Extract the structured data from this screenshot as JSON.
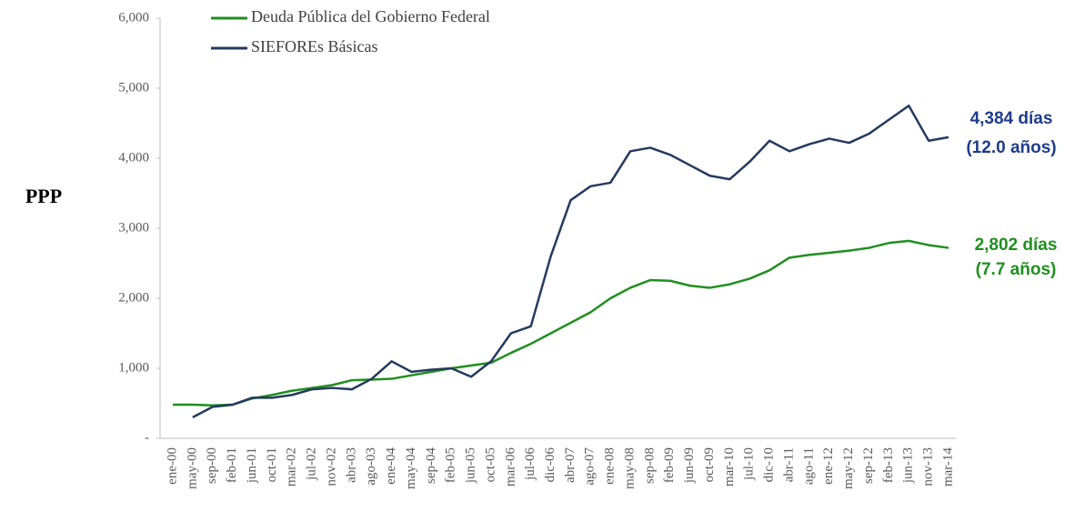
{
  "chart_data": {
    "type": "line",
    "ylabel": "PPP",
    "categories": [
      "ene-00",
      "may-00",
      "sep-00",
      "feb-01",
      "jun-01",
      "oct-01",
      "mar-02",
      "jul-02",
      "nov-02",
      "abr-03",
      "ago-03",
      "ene-04",
      "may-04",
      "sep-04",
      "feb-05",
      "jun-05",
      "oct-05",
      "mar-06",
      "jul-06",
      "dic-06",
      "abr-07",
      "ago-07",
      "ene-08",
      "may-08",
      "sep-08",
      "feb-09",
      "jun-09",
      "oct-09",
      "mar-10",
      "jul-10",
      "dic-10",
      "abr-11",
      "ago-11",
      "ene-12",
      "may-12",
      "sep-12",
      "feb-13",
      "jun-13",
      "nov-13",
      "mar-14"
    ],
    "series": [
      {
        "name": "Deuda Pública del Gobierno Federal",
        "color": "#1f8f1f",
        "values": [
          480,
          480,
          470,
          480,
          570,
          620,
          680,
          720,
          760,
          830,
          840,
          850,
          900,
          950,
          1000,
          1040,
          1080,
          1220,
          1350,
          1500,
          1650,
          1800,
          2000,
          2150,
          2260,
          2250,
          2180,
          2150,
          2200,
          2280,
          2400,
          2580,
          2620,
          2650,
          2680,
          2720,
          2790,
          2820,
          2760,
          2720
        ]
      },
      {
        "name": "SIEFOREs Básicas",
        "color": "#253a5e",
        "values": [
          null,
          300,
          450,
          480,
          580,
          580,
          620,
          700,
          720,
          700,
          850,
          1100,
          950,
          980,
          1000,
          880,
          1100,
          1500,
          1600,
          2600,
          3400,
          3600,
          3650,
          4100,
          4150,
          4050,
          3900,
          3750,
          3700,
          3950,
          4250,
          4100,
          4200,
          4280,
          4220,
          4350,
          4550,
          4750,
          4250,
          4300
        ]
      }
    ],
    "ylim": [
      0,
      6000
    ],
    "yticks": [
      {
        "value": 0,
        "label": "-"
      },
      {
        "value": 1000,
        "label": "1,000"
      },
      {
        "value": 2000,
        "label": "2,000"
      },
      {
        "value": 3000,
        "label": "3,000"
      },
      {
        "value": 4000,
        "label": "4,000"
      },
      {
        "value": 5000,
        "label": "5,000"
      },
      {
        "value": 6000,
        "label": "6,000"
      }
    ],
    "legend": "upper left",
    "annotations": [
      {
        "text": "4,384 días",
        "color": "#1f3c8c"
      },
      {
        "text": "(12.0 años)",
        "color": "#1f3c8c"
      },
      {
        "text": "2,802 días",
        "color": "#1f8f1f"
      },
      {
        "text": "(7.7 años)",
        "color": "#1f8f1f"
      }
    ]
  }
}
